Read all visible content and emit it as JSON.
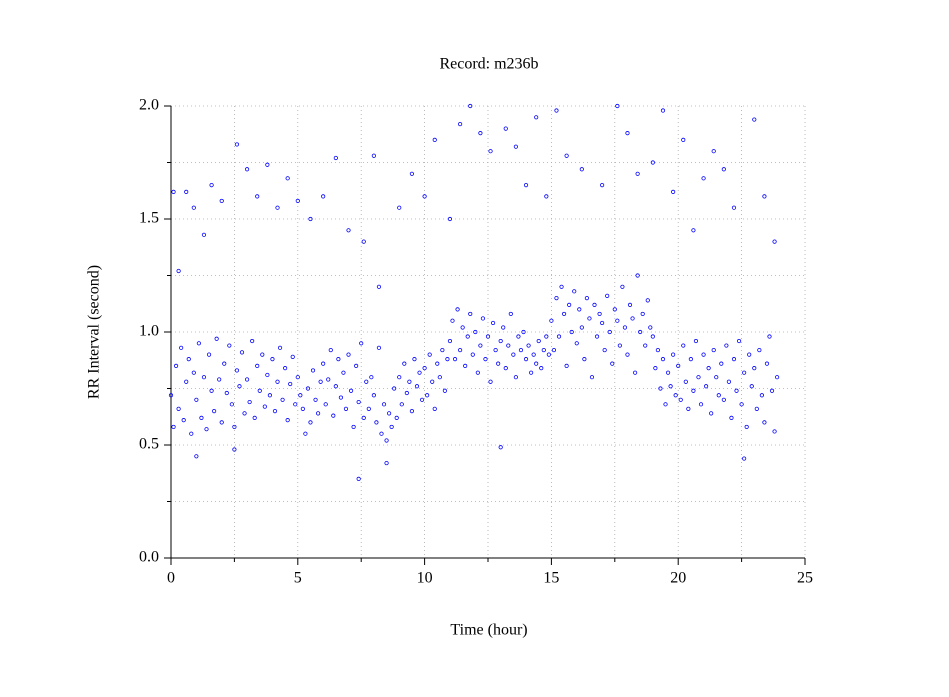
{
  "chart_data": {
    "type": "scatter",
    "title": "Record:  m236b",
    "x_label": "Time (hour)",
    "y_label": "RR Interval (second)",
    "color": "#0000ff",
    "grid": true,
    "xlim": [
      0,
      25
    ],
    "xticks": [
      0,
      5,
      10,
      15,
      20,
      25
    ],
    "xminor_ticks": [
      2.5,
      7.5,
      12.5,
      17.5,
      22.5
    ],
    "ylim": [
      0,
      2
    ],
    "yticks": [
      {
        "value": 0,
        "label": "0.0"
      },
      {
        "value": 0.5,
        "label": "0.5"
      },
      {
        "value": 1,
        "label": "1.0"
      },
      {
        "value": 1.5,
        "label": "1.5"
      },
      {
        "value": 2,
        "label": "2.0"
      }
    ],
    "yminor_ticks": [
      0.25,
      0.75,
      1.25,
      1.75
    ],
    "x": [
      0,
      0.1,
      0.2,
      0.3,
      0.4,
      0.5,
      0.6,
      0.7,
      0.8,
      0.9,
      1,
      1.1,
      1.2,
      1.3,
      1.4,
      1.5,
      1.6,
      1.7,
      1.8,
      1.9,
      2,
      2.1,
      2.2,
      2.3,
      2.4,
      2.5,
      2.6,
      2.7,
      2.8,
      2.9,
      3,
      3.1,
      3.2,
      3.3,
      3.4,
      3.5,
      3.6,
      3.7,
      3.8,
      3.9,
      4,
      4.1,
      4.2,
      4.3,
      4.4,
      4.5,
      4.6,
      4.7,
      4.8,
      4.9,
      5,
      5.1,
      5.2,
      5.3,
      5.4,
      5.5,
      5.6,
      5.7,
      5.8,
      5.9,
      6,
      6.1,
      6.2,
      6.3,
      6.4,
      6.5,
      6.6,
      6.7,
      6.8,
      6.9,
      7,
      7.1,
      7.2,
      7.3,
      7.4,
      7.5,
      7.6,
      7.7,
      7.8,
      7.9,
      8,
      8.1,
      8.2,
      8.3,
      8.4,
      8.5,
      8.6,
      8.7,
      8.8,
      8.9,
      9,
      9.1,
      9.2,
      9.3,
      9.4,
      9.5,
      9.6,
      9.7,
      9.8,
      9.9,
      10,
      10.1,
      10.2,
      10.3,
      10.4,
      10.5,
      10.6,
      10.7,
      10.8,
      10.9,
      11,
      11.1,
      11.2,
      11.3,
      11.4,
      11.5,
      11.6,
      11.7,
      11.8,
      11.9,
      12,
      12.1,
      12.2,
      12.3,
      12.4,
      12.5,
      12.6,
      12.7,
      12.8,
      12.9,
      13,
      13.1,
      13.2,
      13.3,
      13.4,
      13.5,
      13.6,
      13.7,
      13.8,
      13.9,
      14,
      14.1,
      14.2,
      14.3,
      14.4,
      14.5,
      14.6,
      14.7,
      14.8,
      14.9,
      15,
      15.1,
      15.2,
      15.3,
      15.4,
      15.5,
      15.6,
      15.7,
      15.8,
      15.9,
      16,
      16.1,
      16.2,
      16.3,
      16.4,
      16.5,
      16.6,
      16.7,
      16.8,
      16.9,
      17,
      17.1,
      17.2,
      17.3,
      17.4,
      17.5,
      17.6,
      17.7,
      17.8,
      17.9,
      18,
      18.1,
      18.2,
      18.3,
      18.4,
      18.5,
      18.6,
      18.7,
      18.8,
      18.9,
      19,
      19.1,
      19.2,
      19.3,
      19.4,
      19.5,
      19.6,
      19.7,
      19.8,
      19.9,
      20,
      20.1,
      20.2,
      20.3,
      20.4,
      20.5,
      20.6,
      20.7,
      20.8,
      20.9,
      21,
      21.1,
      21.2,
      21.3,
      21.4,
      21.5,
      21.6,
      21.7,
      21.8,
      21.9,
      22,
      22.1,
      22.2,
      22.3,
      22.4,
      22.5,
      22.6,
      22.7,
      22.8,
      22.9,
      23,
      23.1,
      23.2,
      23.3,
      23.4,
      23.5,
      23.6,
      23.7,
      23.8,
      23.9,
      0.1,
      0.3,
      0.6,
      0.9,
      1.0,
      1.3,
      1.6,
      2.0,
      2.5,
      2.6,
      3.0,
      3.4,
      3.8,
      4.2,
      4.6,
      5.0,
      5.5,
      6.0,
      6.5,
      7.0,
      7.4,
      7.6,
      8.0,
      8.2,
      8.5,
      9.0,
      9.5,
      10.0,
      10.4,
      11.0,
      11.4,
      11.8,
      12.2,
      12.6,
      13.0,
      13.2,
      13.6,
      14.0,
      14.4,
      14.8,
      15.2,
      15.6,
      16.2,
      17.0,
      17.6,
      18.0,
      18.4,
      19.0,
      19.4,
      19.8,
      20.2,
      20.6,
      21.0,
      21.4,
      21.8,
      22.2,
      22.6,
      23.0,
      23.4,
      23.8
    ],
    "values": [
      0.72,
      0.58,
      0.85,
      0.66,
      0.93,
      0.61,
      0.78,
      0.88,
      0.55,
      0.82,
      0.7,
      0.95,
      0.62,
      0.8,
      0.57,
      0.9,
      0.74,
      0.65,
      0.97,
      0.79,
      0.6,
      0.86,
      0.73,
      0.94,
      0.68,
      0.58,
      0.83,
      0.76,
      0.91,
      0.64,
      0.79,
      0.69,
      0.96,
      0.62,
      0.85,
      0.74,
      0.9,
      0.67,
      0.81,
      0.72,
      0.88,
      0.65,
      0.78,
      0.93,
      0.7,
      0.84,
      0.61,
      0.77,
      0.89,
      0.68,
      0.8,
      0.72,
      0.66,
      0.55,
      0.75,
      0.6,
      0.83,
      0.7,
      0.64,
      0.78,
      0.86,
      0.68,
      0.79,
      0.92,
      0.63,
      0.76,
      0.88,
      0.71,
      0.82,
      0.66,
      0.9,
      0.74,
      0.58,
      0.85,
      0.69,
      0.95,
      0.62,
      0.78,
      0.66,
      0.8,
      0.72,
      0.6,
      0.93,
      0.55,
      0.68,
      0.52,
      0.64,
      0.58,
      0.75,
      0.62,
      0.8,
      0.68,
      0.86,
      0.73,
      0.78,
      0.65,
      0.88,
      0.76,
      0.82,
      0.7,
      0.84,
      0.72,
      0.9,
      0.78,
      0.66,
      0.86,
      0.8,
      0.92,
      0.74,
      0.88,
      0.96,
      1.05,
      0.88,
      1.1,
      0.92,
      1.02,
      0.85,
      0.98,
      1.08,
      0.9,
      1.0,
      0.82,
      0.94,
      1.06,
      0.88,
      0.98,
      0.78,
      1.04,
      0.92,
      0.86,
      0.96,
      1.02,
      0.84,
      0.94,
      1.08,
      0.9,
      0.8,
      0.98,
      0.92,
      1.0,
      0.88,
      0.94,
      0.82,
      0.9,
      0.86,
      0.96,
      0.84,
      0.92,
      0.98,
      0.9,
      1.05,
      0.92,
      1.15,
      0.98,
      1.2,
      1.08,
      0.85,
      1.12,
      1.0,
      1.18,
      0.95,
      1.1,
      1.02,
      0.88,
      1.15,
      1.06,
      0.8,
      1.12,
      0.98,
      1.08,
      1.04,
      0.92,
      1.16,
      1.0,
      0.86,
      1.1,
      1.05,
      0.94,
      1.2,
      1.02,
      0.9,
      1.12,
      1.06,
      0.82,
      1.25,
      1.0,
      1.08,
      0.94,
      1.14,
      1.02,
      0.98,
      0.84,
      0.92,
      0.75,
      0.88,
      0.68,
      0.82,
      0.76,
      0.9,
      0.72,
      0.85,
      0.7,
      0.94,
      0.78,
      0.66,
      0.88,
      0.74,
      0.96,
      0.8,
      0.68,
      0.9,
      0.76,
      0.84,
      0.64,
      0.92,
      0.8,
      0.72,
      0.86,
      0.7,
      0.94,
      0.78,
      0.62,
      0.88,
      0.74,
      0.96,
      0.68,
      0.82,
      0.58,
      0.9,
      0.76,
      0.84,
      0.66,
      0.92,
      0.72,
      0.6,
      0.86,
      0.98,
      0.74,
      0.56,
      0.8,
      1.62,
      1.27,
      1.62,
      1.55,
      0.45,
      1.43,
      1.65,
      1.58,
      0.48,
      1.83,
      1.72,
      1.6,
      1.74,
      1.55,
      1.68,
      1.58,
      1.5,
      1.6,
      1.77,
      1.45,
      0.35,
      1.4,
      1.78,
      1.2,
      0.42,
      1.55,
      1.7,
      1.6,
      1.85,
      1.5,
      1.92,
      2.0,
      1.88,
      1.8,
      0.49,
      1.9,
      1.82,
      1.65,
      1.95,
      1.6,
      1.98,
      1.78,
      1.72,
      1.65,
      2.0,
      1.88,
      1.7,
      1.75,
      1.98,
      1.62,
      1.85,
      1.45,
      1.68,
      1.8,
      1.72,
      1.55,
      0.44,
      1.94,
      1.6,
      1.4
    ]
  }
}
